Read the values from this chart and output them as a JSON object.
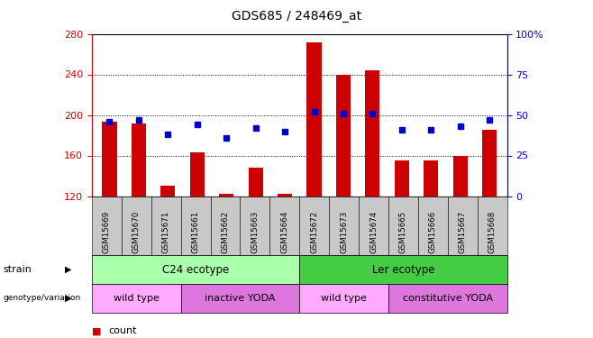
{
  "title": "GDS685 / 248469_at",
  "samples": [
    "GSM15669",
    "GSM15670",
    "GSM15671",
    "GSM15661",
    "GSM15662",
    "GSM15663",
    "GSM15664",
    "GSM15672",
    "GSM15673",
    "GSM15674",
    "GSM15665",
    "GSM15666",
    "GSM15667",
    "GSM15668"
  ],
  "counts": [
    193,
    192,
    130,
    163,
    122,
    148,
    122,
    272,
    240,
    244,
    155,
    155,
    160,
    185
  ],
  "percentiles": [
    46,
    47,
    38,
    44,
    36,
    42,
    40,
    52,
    51,
    51,
    41,
    41,
    43,
    47
  ],
  "ylim_left": [
    120,
    280
  ],
  "ylim_right": [
    0,
    100
  ],
  "yticks_left": [
    120,
    160,
    200,
    240,
    280
  ],
  "yticks_right": [
    0,
    25,
    50,
    75,
    100
  ],
  "bar_color": "#cc0000",
  "dot_color": "#0000cc",
  "strain_labels": [
    {
      "text": "C24 ecotype",
      "start": 0,
      "end": 6,
      "color": "#aaffaa"
    },
    {
      "text": "Ler ecotype",
      "start": 7,
      "end": 13,
      "color": "#44cc44"
    }
  ],
  "genotype_labels": [
    {
      "text": "wild type",
      "start": 0,
      "end": 2,
      "color": "#ffaaff"
    },
    {
      "text": "inactive YODA",
      "start": 3,
      "end": 6,
      "color": "#dd77dd"
    },
    {
      "text": "wild type",
      "start": 7,
      "end": 9,
      "color": "#ffaaff"
    },
    {
      "text": "constitutive YODA",
      "start": 10,
      "end": 13,
      "color": "#dd77dd"
    }
  ],
  "left_axis_color": "#cc0000",
  "right_axis_color": "#0000cc",
  "grid_color": "#000000",
  "background_color": "#ffffff",
  "tick_bg_color": "#c8c8c8"
}
